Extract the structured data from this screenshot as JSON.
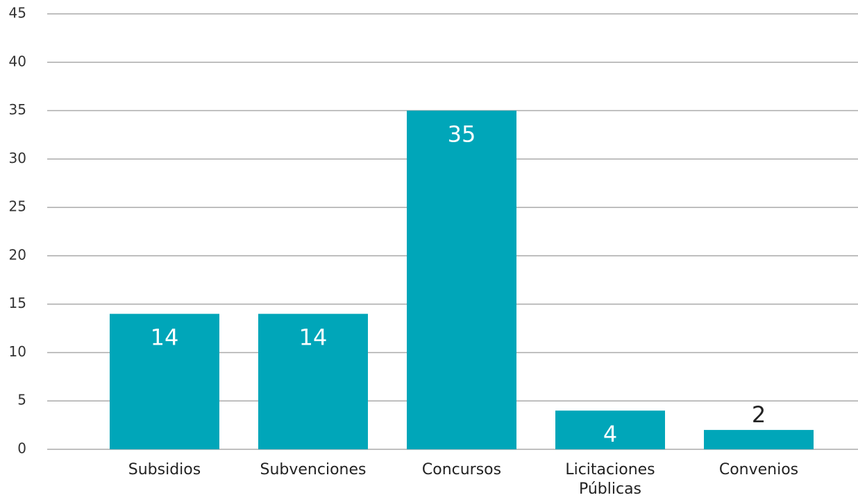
{
  "chart_data": {
    "type": "bar",
    "categories": [
      "Subsidios",
      "Subvenciones",
      "Concursos",
      "Licitaciones Públicas",
      "Convenios"
    ],
    "values": [
      14,
      14,
      35,
      4,
      2
    ],
    "color": "#00a6b9",
    "ylim": [
      0,
      45
    ],
    "yticks": [
      0,
      5,
      10,
      15,
      20,
      25,
      30,
      35,
      40,
      45
    ],
    "grid": true
  }
}
